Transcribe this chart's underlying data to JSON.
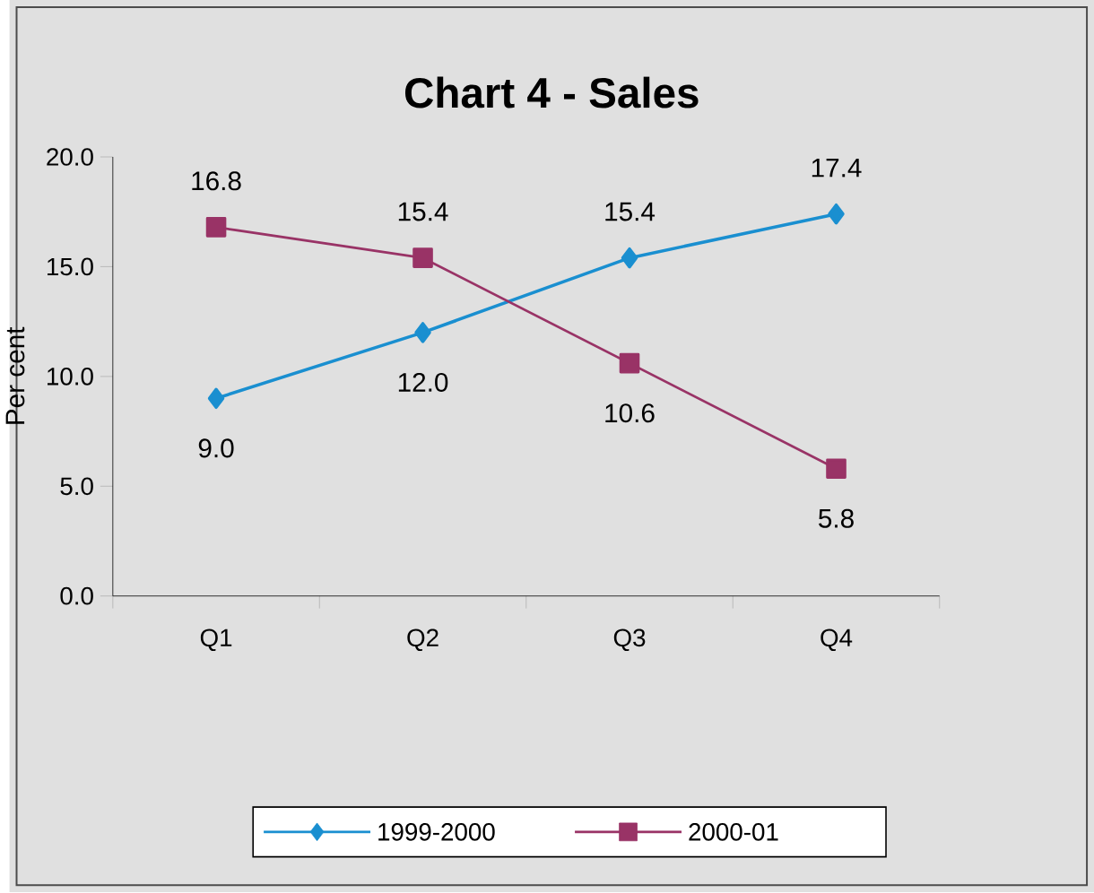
{
  "chart_data": {
    "type": "line",
    "title": "Chart 4 - Sales",
    "ylabel": "Per cent",
    "categories": [
      "Q1",
      "Q2",
      "Q3",
      "Q4"
    ],
    "series": [
      {
        "name": "1999-2000",
        "color": "#1a8fd0",
        "marker": "diamond",
        "values": [
          9.0,
          12.0,
          15.4,
          17.4
        ],
        "value_labels": [
          "9.0",
          "12.0",
          "15.4",
          "17.4"
        ]
      },
      {
        "name": "2000-01",
        "color": "#993366",
        "marker": "square",
        "values": [
          16.8,
          15.4,
          10.6,
          5.8
        ],
        "value_labels": [
          "16.8",
          "15.4",
          "10.6",
          "5.8"
        ]
      }
    ],
    "ylim": [
      0,
      20
    ],
    "yticks": [
      {
        "value": 0,
        "label": "0.0"
      },
      {
        "value": 5,
        "label": "5.0"
      },
      {
        "value": 10,
        "label": "10.0"
      },
      {
        "value": 15,
        "label": "15.0"
      },
      {
        "value": 20,
        "label": "20.0"
      }
    ],
    "grid": false,
    "legend": "bottom"
  }
}
